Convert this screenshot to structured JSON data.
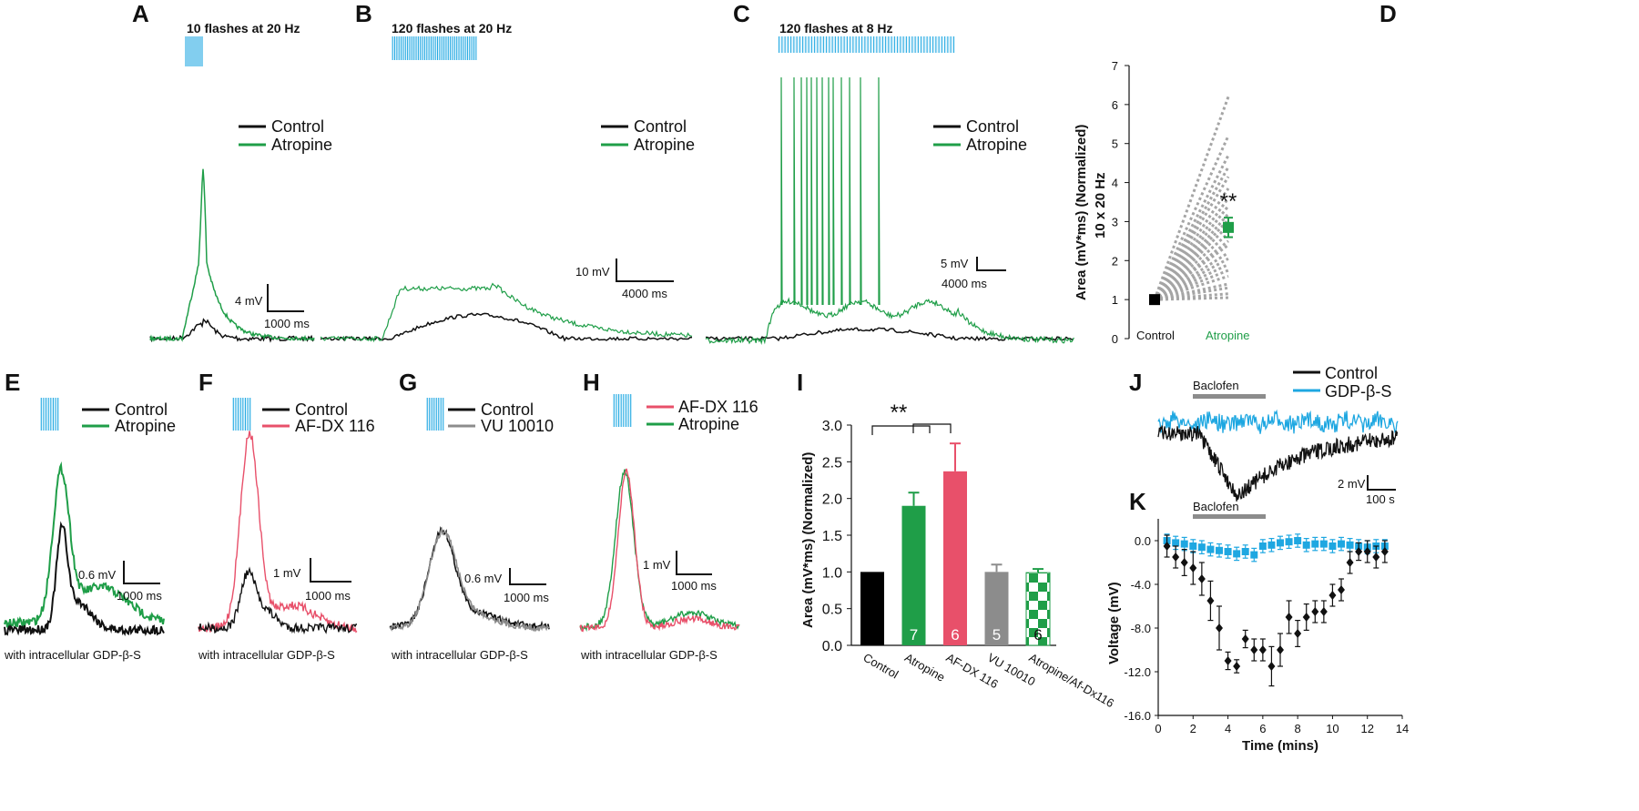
{
  "colors": {
    "control": "#111111",
    "atropine": "#1f9e48",
    "afdx": "#e8506a",
    "vu": "#8c8c8c",
    "gdp": "#1ea7e1",
    "flash": "#9fdcf3",
    "dots": "#a5a5a5"
  },
  "panels": {
    "A": {
      "label": "A",
      "stim": "10 flashes at 20 Hz",
      "legend": [
        "Control",
        "Atropine"
      ],
      "scale_v": "4 mV",
      "scale_t": "1000 ms"
    },
    "B": {
      "label": "B",
      "stim": "120 flashes at 20 Hz",
      "legend": [
        "Control",
        "Atropine"
      ],
      "scale_v": "10 mV",
      "scale_t": "4000 ms"
    },
    "C": {
      "label": "C",
      "stim": "120 flashes at 8 Hz",
      "legend": [
        "Control",
        "Atropine"
      ],
      "scale_v": "5 mV",
      "scale_t": "4000 ms"
    },
    "D": {
      "label": "D"
    },
    "E": {
      "label": "E",
      "legend": [
        "Control",
        "Atropine"
      ],
      "scale_v": "0.6 mV",
      "scale_t": "1000 ms",
      "caption": "with intracellular GDP-β-S"
    },
    "F": {
      "label": "F",
      "legend": [
        "Control",
        "AF-DX 116"
      ],
      "scale_v": "1 mV",
      "scale_t": "1000 ms",
      "caption": "with intracellular GDP-β-S"
    },
    "G": {
      "label": "G",
      "legend": [
        "Control",
        "VU 10010"
      ],
      "scale_v": "0.6 mV",
      "scale_t": "1000 ms",
      "caption": "with intracellular GDP-β-S"
    },
    "H": {
      "label": "H",
      "legend": [
        "AF-DX 116",
        "Atropine"
      ],
      "scale_v": "1 mV",
      "scale_t": "1000 ms",
      "caption": "with intracellular GDP-β-S"
    },
    "I": {
      "label": "I"
    },
    "J": {
      "label": "J",
      "stim": "Baclofen",
      "legend": [
        "Control",
        "GDP-β-S"
      ],
      "scale_v": "2 mV",
      "scale_t": "100 s"
    },
    "K": {
      "label": "K",
      "stim": "Baclofen"
    }
  },
  "chart_data": [
    {
      "panel": "D",
      "type": "scatter",
      "title": "",
      "ylabel": "Area (mV*ms) (Normalized)",
      "ylabel2": "10 x 20 Hz",
      "categories": [
        "Control",
        "Atropine"
      ],
      "ylim": [
        0,
        7
      ],
      "yticks": [
        "0",
        "1",
        "2",
        "3",
        "4",
        "5",
        "6",
        "7"
      ],
      "control_value": 1,
      "atropine_mean": 2.85,
      "atropine_error": 0.25,
      "individual_endpoints": [
        1.05,
        1.15,
        1.3,
        1.4,
        1.6,
        1.75,
        1.9,
        2.05,
        2.2,
        2.4,
        2.5,
        2.7,
        2.9,
        3.05,
        3.2,
        3.4,
        3.6,
        3.85,
        4.15,
        4.4,
        4.7,
        5.2,
        6.2
      ],
      "significance": "**"
    },
    {
      "panel": "I",
      "type": "bar",
      "ylabel": "Area (mV*ms) (Normalized)",
      "categories": [
        "Control",
        "Atropine",
        "AF-DX 116",
        "VU 10010",
        "Atropine/Af-Dx116"
      ],
      "values": [
        1.0,
        1.9,
        2.37,
        1.0,
        0.99
      ],
      "errors": [
        0,
        0.18,
        0.38,
        0.1,
        0.05
      ],
      "n": [
        "",
        "7",
        "6",
        "5",
        "6"
      ],
      "ylim": [
        0,
        3
      ],
      "yticks": [
        "0.0",
        "0.5",
        "1.0",
        "1.5",
        "2.0",
        "2.5",
        "3.0"
      ],
      "significance": "**"
    },
    {
      "panel": "K",
      "type": "scatter",
      "xlabel": "Time (mins)",
      "ylabel": "Voltage (mV)",
      "xlim": [
        0,
        14
      ],
      "ylim": [
        -16,
        2
      ],
      "xticks": [
        "0",
        "2",
        "4",
        "6",
        "8",
        "10",
        "12",
        "14"
      ],
      "yticks": [
        "0.0",
        "-4.0",
        "-8.0",
        "-12.0",
        "-16.0"
      ],
      "series": [
        {
          "name": "Control",
          "x": [
            0.5,
            1.0,
            1.5,
            2.0,
            2.5,
            3.0,
            3.5,
            4.0,
            4.5,
            5.0,
            5.5,
            6.0,
            6.5,
            7.0,
            7.5,
            8.0,
            8.5,
            9.0,
            9.5,
            10.0,
            10.5,
            11.0,
            11.5,
            12.0,
            12.5,
            13.0
          ],
          "y": [
            -0.5,
            -1.5,
            -2.0,
            -2.5,
            -3.5,
            -5.5,
            -8.0,
            -11.0,
            -11.5,
            -9.0,
            -10.0,
            -10.0,
            -11.5,
            -10.0,
            -7.0,
            -8.5,
            -7.0,
            -6.5,
            -6.5,
            -5.0,
            -4.5,
            -2.0,
            -1.0,
            -1.0,
            -1.5,
            -1.0
          ],
          "err": [
            1.0,
            1.0,
            1.2,
            1.5,
            1.5,
            1.8,
            2.0,
            0.8,
            0.6,
            0.8,
            1.0,
            1.0,
            1.8,
            1.5,
            1.5,
            1.2,
            1.2,
            1.0,
            1.0,
            1.0,
            1.0,
            1.0,
            0.8,
            1.0,
            1.0,
            1.0
          ]
        },
        {
          "name": "GDP-β-S",
          "x": [
            0.5,
            1.0,
            1.5,
            2.0,
            2.5,
            3.0,
            3.5,
            4.0,
            4.5,
            5.0,
            5.5,
            6.0,
            6.5,
            7.0,
            7.5,
            8.0,
            8.5,
            9.0,
            9.5,
            10.0,
            10.5,
            11.0,
            11.5,
            12.0,
            12.5,
            13.0
          ],
          "y": [
            0.0,
            -0.2,
            -0.3,
            -0.5,
            -0.6,
            -0.8,
            -0.9,
            -1.0,
            -1.2,
            -1.0,
            -1.3,
            -0.5,
            -0.4,
            -0.2,
            -0.1,
            0.0,
            -0.4,
            -0.3,
            -0.3,
            -0.5,
            -0.3,
            -0.4,
            -0.5,
            -0.6,
            -0.5,
            -0.5
          ],
          "err": [
            0.6,
            0.6,
            0.6,
            0.6,
            0.6,
            0.6,
            0.6,
            0.6,
            0.6,
            0.6,
            0.6,
            0.6,
            0.6,
            0.6,
            0.6,
            0.6,
            0.6,
            0.6,
            0.6,
            0.6,
            0.6,
            0.6,
            0.6,
            0.6,
            0.6,
            0.6
          ]
        }
      ]
    }
  ]
}
